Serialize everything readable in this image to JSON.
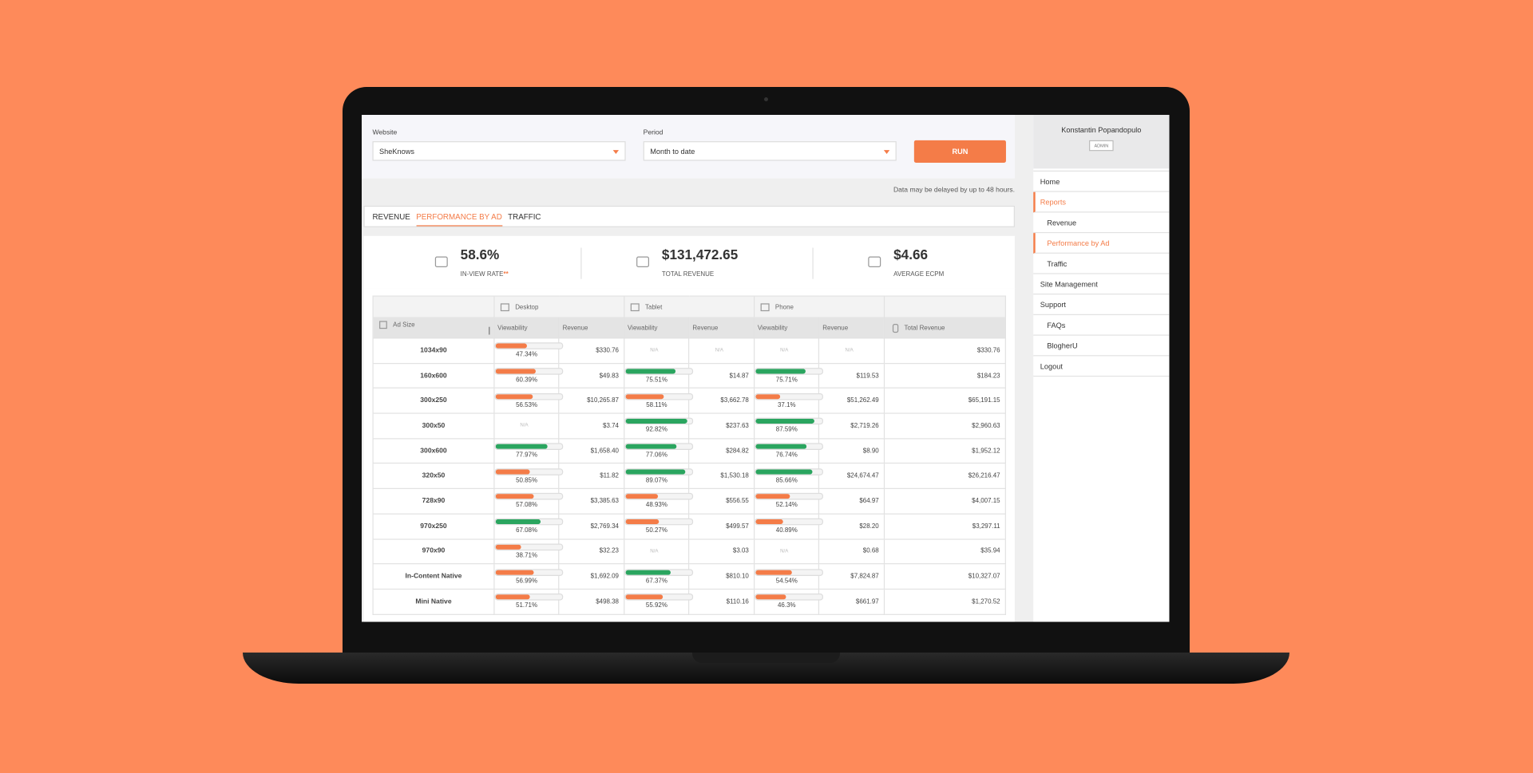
{
  "filters": {
    "website": {
      "label": "Website",
      "value": "SheKnows"
    },
    "period": {
      "label": "Period",
      "value": "Month to date"
    },
    "run": "RUN"
  },
  "note": "Data may be delayed by up to 48 hours.",
  "tabs": {
    "items": [
      "REVENUE",
      "PERFORMANCE BY AD",
      "TRAFFIC"
    ],
    "active": 1
  },
  "kpis": [
    {
      "value": "58.6%",
      "label": "IN-VIEW RATE",
      "marker": "**"
    },
    {
      "value": "$131,472.65",
      "label": "TOTAL REVENUE"
    },
    {
      "value": "$4.66",
      "label": "AVERAGE ECPM"
    }
  ],
  "table": {
    "groups": [
      "Desktop",
      "Tablet",
      "Phone"
    ],
    "columns": [
      "Ad Size",
      "Viewability",
      "Revenue",
      "Viewability",
      "Revenue",
      "Viewability",
      "Revenue",
      "Total Revenue"
    ],
    "viewability_xlim": [
      0,
      100
    ],
    "rows": [
      [
        "1034x90",
        {
          "value": 47.34,
          "label": "47.34%",
          "color": "#f47c48"
        },
        "$330.76",
        "N/A",
        "N/A",
        "N/A",
        "N/A",
        "$330.76"
      ],
      [
        "160x600",
        {
          "value": 60.39,
          "label": "60.39%",
          "color": "#f47c48"
        },
        "$49.83",
        {
          "value": 75.51,
          "label": "75.51%",
          "color": "#2aa55f"
        },
        "$14.87",
        {
          "value": 75.71,
          "label": "75.71%",
          "color": "#2aa55f"
        },
        "$119.53",
        "$184.23"
      ],
      [
        "300x250",
        {
          "value": 56.53,
          "label": "56.53%",
          "color": "#f47c48"
        },
        "$10,265.87",
        {
          "value": 58.11,
          "label": "58.11%",
          "color": "#f47c48"
        },
        "$3,662.78",
        {
          "value": 37.1,
          "label": "37.1%",
          "color": "#f47c48"
        },
        "$51,262.49",
        "$65,191.15"
      ],
      [
        "300x50",
        "N/A",
        "$3.74",
        {
          "value": 92.82,
          "label": "92.82%",
          "color": "#2aa55f"
        },
        "$237.63",
        {
          "value": 87.59,
          "label": "87.59%",
          "color": "#2aa55f"
        },
        "$2,719.26",
        "$2,960.63"
      ],
      [
        "300x600",
        {
          "value": 77.97,
          "label": "77.97%",
          "color": "#2aa55f"
        },
        "$1,658.40",
        {
          "value": 77.06,
          "label": "77.06%",
          "color": "#2aa55f"
        },
        "$284.82",
        {
          "value": 76.74,
          "label": "76.74%",
          "color": "#2aa55f"
        },
        "$8.90",
        "$1,952.12"
      ],
      [
        "320x50",
        {
          "value": 50.85,
          "label": "50.85%",
          "color": "#f47c48"
        },
        "$11.82",
        {
          "value": 89.07,
          "label": "89.07%",
          "color": "#2aa55f"
        },
        "$1,530.18",
        {
          "value": 85.66,
          "label": "85.66%",
          "color": "#2aa55f"
        },
        "$24,674.47",
        "$26,216.47"
      ],
      [
        "728x90",
        {
          "value": 57.08,
          "label": "57.08%",
          "color": "#f47c48"
        },
        "$3,385.63",
        {
          "value": 48.93,
          "label": "48.93%",
          "color": "#f47c48"
        },
        "$556.55",
        {
          "value": 52.14,
          "label": "52.14%",
          "color": "#f47c48"
        },
        "$64.97",
        "$4,007.15"
      ],
      [
        "970x250",
        {
          "value": 67.08,
          "label": "67.08%",
          "color": "#2aa55f"
        },
        "$2,769.34",
        {
          "value": 50.27,
          "label": "50.27%",
          "color": "#f47c48"
        },
        "$499.57",
        {
          "value": 40.89,
          "label": "40.89%",
          "color": "#f47c48"
        },
        "$28.20",
        "$3,297.11"
      ],
      [
        "970x90",
        {
          "value": 38.71,
          "label": "38.71%",
          "color": "#f47c48"
        },
        "$32.23",
        "N/A",
        "$3.03",
        "N/A",
        "$0.68",
        "$35.94"
      ],
      [
        "In-Content Native",
        {
          "value": 56.99,
          "label": "56.99%",
          "color": "#f47c48"
        },
        "$1,692.09",
        {
          "value": 67.37,
          "label": "67.37%",
          "color": "#2aa55f"
        },
        "$810.10",
        {
          "value": 54.54,
          "label": "54.54%",
          "color": "#f47c48"
        },
        "$7,824.87",
        "$10,327.07"
      ],
      [
        "Mini Native",
        {
          "value": 51.71,
          "label": "51.71%",
          "color": "#f47c48"
        },
        "$498.38",
        {
          "value": 55.92,
          "label": "55.92%",
          "color": "#f47c48"
        },
        "$110.16",
        {
          "value": 46.3,
          "label": "46.3%",
          "color": "#f47c48"
        },
        "$661.97",
        "$1,270.52"
      ]
    ]
  },
  "sidebar": {
    "user": "Konstantin Popandopulo",
    "role": "ADMIN",
    "menu": [
      {
        "label": "Home",
        "level": 0
      },
      {
        "label": "Reports",
        "level": 0,
        "active": true
      },
      {
        "label": "Revenue",
        "level": 1
      },
      {
        "label": "Performance by Ad",
        "level": 1,
        "active": true
      },
      {
        "label": "Traffic",
        "level": 1
      },
      {
        "label": "Site Management",
        "level": 0
      },
      {
        "label": "Support",
        "level": 0
      },
      {
        "label": "FAQs",
        "level": 1
      },
      {
        "label": "BlogherU",
        "level": 1
      },
      {
        "label": "Logout",
        "level": 0
      }
    ]
  }
}
